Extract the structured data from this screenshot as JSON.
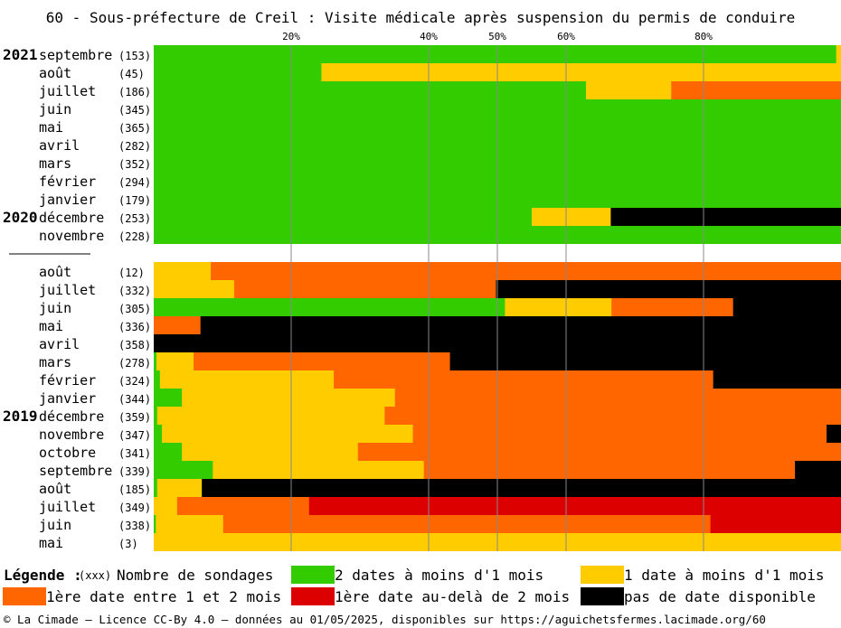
{
  "chart_data": {
    "type": "bar",
    "orientation": "horizontal-stacked-100",
    "title": "60 - Sous-préfecture de Creil : Visite médicale après suspension du permis de conduire",
    "xlim": [
      0,
      100
    ],
    "x_ticks": [
      "20%",
      "40%",
      "50%",
      "60%",
      "80%"
    ],
    "x_tick_values": [
      20,
      40,
      50,
      60,
      80
    ],
    "grid": "vertical",
    "categories": [
      {
        "year": "2021",
        "month": "septembre",
        "count": "(153)",
        "values": [
          99.3,
          0.7,
          0,
          0,
          0
        ]
      },
      {
        "year": "",
        "month": "août",
        "count": "(45)",
        "values": [
          24.4,
          75.6,
          0,
          0,
          0
        ]
      },
      {
        "year": "",
        "month": "juillet",
        "count": "(186)",
        "values": [
          62.9,
          12.4,
          24.7,
          0,
          0
        ]
      },
      {
        "year": "",
        "month": "juin",
        "count": "(345)",
        "values": [
          100,
          0,
          0,
          0,
          0
        ]
      },
      {
        "year": "",
        "month": "mai",
        "count": "(365)",
        "values": [
          100,
          0,
          0,
          0,
          0
        ]
      },
      {
        "year": "",
        "month": "avril",
        "count": "(282)",
        "values": [
          100,
          0,
          0,
          0,
          0
        ]
      },
      {
        "year": "",
        "month": "mars",
        "count": "(352)",
        "values": [
          100,
          0,
          0,
          0,
          0
        ]
      },
      {
        "year": "",
        "month": "février",
        "count": "(294)",
        "values": [
          100,
          0,
          0,
          0,
          0
        ]
      },
      {
        "year": "",
        "month": "janvier",
        "count": "(179)",
        "values": [
          100,
          0,
          0,
          0,
          0
        ]
      },
      {
        "year": "2020",
        "month": "décembre",
        "count": "(253)",
        "values": [
          55.0,
          11.5,
          0,
          0,
          33.5
        ]
      },
      {
        "year": "",
        "month": "novembre",
        "count": "(228)",
        "values": [
          100,
          0,
          0,
          0,
          0
        ]
      },
      {
        "separator": true
      },
      {
        "year": "",
        "month": "août",
        "count": "(12)",
        "values": [
          0,
          8.3,
          91.7,
          0,
          0
        ]
      },
      {
        "year": "",
        "month": "juillet",
        "count": "(332)",
        "values": [
          0,
          11.7,
          38.1,
          0,
          50.2
        ]
      },
      {
        "year": "",
        "month": "juin",
        "count": "(305)",
        "values": [
          51.1,
          15.5,
          17.7,
          0,
          15.7
        ]
      },
      {
        "year": "",
        "month": "mai",
        "count": "(336)",
        "values": [
          0,
          0,
          6.8,
          0,
          93.2
        ]
      },
      {
        "year": "",
        "month": "avril",
        "count": "(358)",
        "values": [
          0,
          0,
          0,
          0,
          100
        ]
      },
      {
        "year": "",
        "month": "mars",
        "count": "(278)",
        "values": [
          0.4,
          5.4,
          37.3,
          0,
          56.9
        ]
      },
      {
        "year": "",
        "month": "février",
        "count": "(324)",
        "values": [
          0.9,
          25.3,
          55.2,
          0,
          18.6
        ]
      },
      {
        "year": "",
        "month": "janvier",
        "count": "(344)",
        "values": [
          4.1,
          31.0,
          64.9,
          0,
          0
        ]
      },
      {
        "year": "2019",
        "month": "décembre",
        "count": "(359)",
        "values": [
          0.5,
          33.1,
          66.4,
          0,
          0
        ]
      },
      {
        "year": "",
        "month": "novembre",
        "count": "(347)",
        "values": [
          1.2,
          36.5,
          60.2,
          0,
          2.1
        ]
      },
      {
        "year": "",
        "month": "octobre",
        "count": "(341)",
        "values": [
          4.1,
          25.6,
          70.3,
          0,
          0
        ]
      },
      {
        "year": "",
        "month": "septembre",
        "count": "(339)",
        "values": [
          8.6,
          30.7,
          54.0,
          0,
          6.7
        ]
      },
      {
        "year": "",
        "month": "août",
        "count": "(185)",
        "values": [
          0.5,
          6.5,
          0,
          0,
          93.0
        ]
      },
      {
        "year": "",
        "month": "juillet",
        "count": "(349)",
        "values": [
          0,
          3.4,
          19.2,
          77.4,
          0
        ]
      },
      {
        "year": "",
        "month": "juin",
        "count": "(338)",
        "values": [
          0.3,
          9.8,
          70.9,
          19.0,
          0
        ]
      },
      {
        "year": "",
        "month": "mai",
        "count": "(3)",
        "values": [
          0,
          100,
          0,
          0,
          0
        ]
      }
    ],
    "series": [
      {
        "name": "2 dates à moins d'1 mois",
        "color": "#33cc00"
      },
      {
        "name": "1 date à moins d'1 mois",
        "color": "#ffcc00"
      },
      {
        "name": "1ère date entre 1 et 2 mois",
        "color": "#ff6600"
      },
      {
        "name": "1ère date au-delà de 2 mois",
        "color": "#dd0000"
      },
      {
        "name": "pas de date disponible",
        "color": "#000000"
      }
    ]
  },
  "legend": {
    "title": "Légende :",
    "count_sample": "(xxx)",
    "count_label": "Nombre de sondages"
  },
  "footer": "© La Cimade — Licence CC-By 4.0 — données au 01/05/2025, disponibles sur https://aguichetsfermes.lacimade.org/60"
}
